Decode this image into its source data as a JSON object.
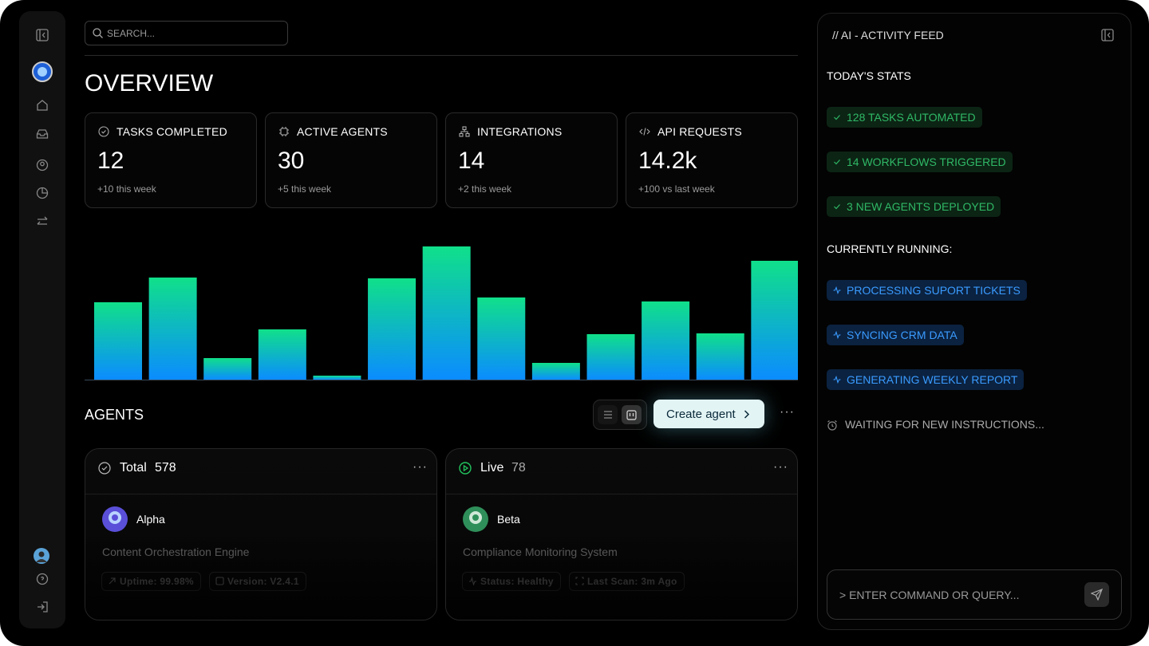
{
  "search_placeholder": "SEARCH...",
  "title": "OVERVIEW",
  "stats": [
    {
      "label": "TASKS COMPLETED",
      "value": 12,
      "note": "+10 this week"
    },
    {
      "label": "ACTIVE AGENTS",
      "value": 30,
      "note": "+5 this week"
    },
    {
      "label": "INTEGRATIONS",
      "value": 14,
      "note": "+2 this week"
    },
    {
      "label": "API REQUESTS",
      "value": "14.2k",
      "note": "+100 vs last week"
    }
  ],
  "activity_chart": {
    "type": "bar",
    "values": [
      97,
      128,
      27,
      63,
      5,
      127,
      167,
      103,
      21,
      57,
      98,
      58,
      149
    ]
  },
  "agents": {
    "title": "AGENTS",
    "create_button": "Create agent",
    "cards": [
      {
        "status": "Total",
        "count": 578,
        "name": "Alpha",
        "description": "Content Orchestration Engine",
        "tags": [
          "Uptime: 99.98%",
          "Version: V2.4.1"
        ]
      },
      {
        "status": "Live",
        "count": 78,
        "name": "Beta",
        "description": "Compliance Monitoring System",
        "tags": [
          "Status: Healthy",
          "Last Scan: 3m Ago"
        ]
      }
    ]
  },
  "feed": {
    "title": "// AI - ACTIVITY FEED",
    "stats_heading": "TODAY'S STATS",
    "stats": [
      "128 TASKS AUTOMATED",
      "14 WORKFLOWS TRIGGERED",
      "3 NEW AGENTS DEPLOYED"
    ],
    "running_heading": "CURRENTLY RUNNING:",
    "running": [
      "PROCESSING SUPORT TICKETS",
      "SYNCING CRM DATA",
      "GENERATING WEEKLY REPORT"
    ],
    "waiting": "WAITING FOR NEW INSTRUCTIONS...",
    "input_placeholder": "> ENTER COMMAND OR QUERY..."
  }
}
